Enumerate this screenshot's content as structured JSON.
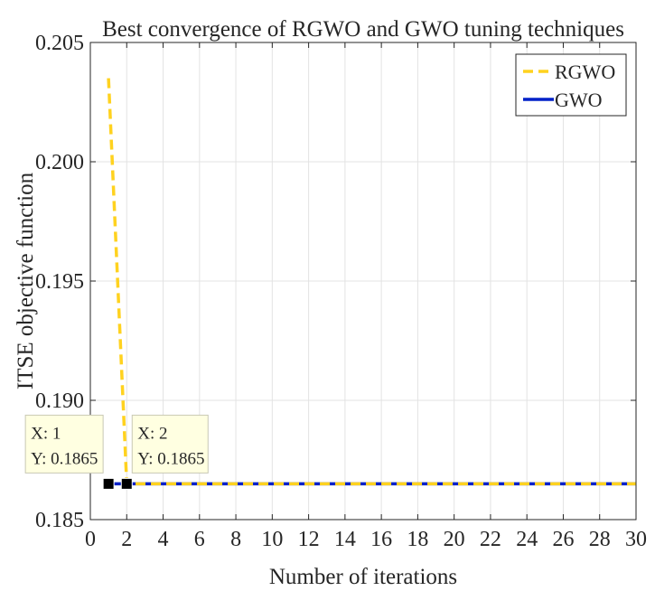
{
  "chart_data": {
    "type": "line",
    "title": "Best convergence of RGWO and GWO tuning techniques",
    "xlabel": "Number of iterations",
    "ylabel": "ITSE objective function",
    "xlim": [
      0,
      30
    ],
    "ylim": [
      0.185,
      0.205
    ],
    "xticks": [
      0,
      2,
      4,
      6,
      8,
      10,
      12,
      14,
      16,
      18,
      20,
      22,
      24,
      26,
      28,
      30
    ],
    "yticks": [
      0.185,
      0.19,
      0.195,
      0.2,
      0.205
    ],
    "ytick_labels": [
      "0.185",
      "0.190",
      "0.195",
      "0.200",
      "0.205"
    ],
    "grid": true,
    "legend_position": "top-right",
    "series": [
      {
        "name": "RGWO",
        "color": "#ffd21f",
        "style": "dashed",
        "x": [
          1,
          2,
          3,
          30
        ],
        "y": [
          0.2035,
          0.1865,
          0.1865,
          0.1865
        ]
      },
      {
        "name": "GWO",
        "color": "#0021c8",
        "style": "solid",
        "x": [
          1,
          2,
          30
        ],
        "y": [
          0.1865,
          0.1865,
          0.1865
        ]
      }
    ],
    "datatips": [
      {
        "x": 1,
        "y": 0.1865,
        "x_text": "X: 1",
        "y_text": "Y: 0.1865"
      },
      {
        "x": 2,
        "y": 0.1865,
        "x_text": "X: 2",
        "y_text": "Y: 0.1865"
      }
    ]
  }
}
